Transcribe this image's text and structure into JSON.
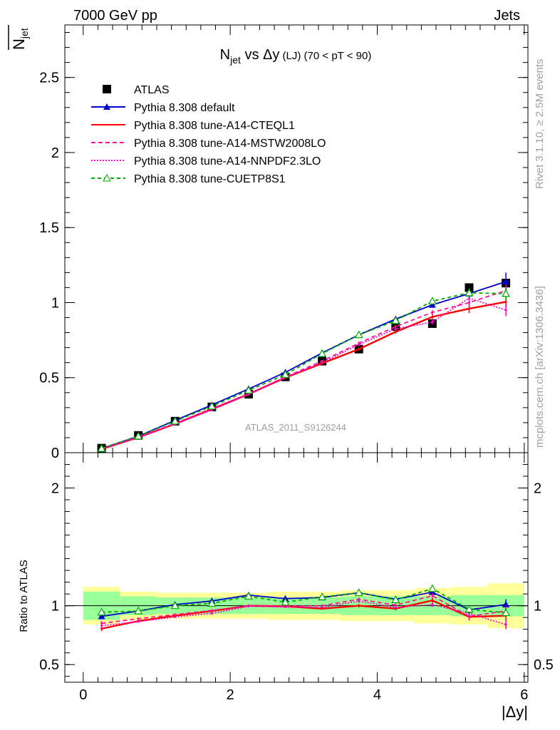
{
  "header": {
    "energy_label": "7000 GeV pp",
    "process_label": "Jets",
    "side_rivet": "Rivet 3.1.10, ≥ 2.5M events",
    "side_mcplots": "mcplots.cern.ch [arXiv:1306.3436]",
    "analysis_id": "ATLAS_2011_S9126244"
  },
  "chart_data": [
    {
      "type": "line",
      "panel": "main",
      "title": {
        "n": "N",
        "sub": "jet",
        "rest": " vs Δy",
        "small": " (LJ)",
        "tail": " (70 < pT <  90)"
      },
      "ylabel": {
        "n": "N",
        "sub": "jet"
      },
      "xlim": [
        -0.25,
        6.05
      ],
      "ylim": [
        0,
        2.85
      ],
      "yticks": [
        0,
        0.5,
        1,
        1.5,
        2,
        2.5
      ],
      "ytick_labels": [
        "0",
        "0.5",
        "1",
        "1.5",
        "2",
        "2.5"
      ],
      "legend_position": "top-left",
      "x": [
        0.25,
        0.75,
        1.25,
        1.75,
        2.25,
        2.75,
        3.25,
        3.75,
        4.25,
        4.75,
        5.25,
        5.75
      ],
      "data": {
        "name": "ATLAS",
        "values": [
          0.03,
          0.115,
          0.21,
          0.305,
          0.39,
          0.505,
          0.61,
          0.69,
          0.84,
          0.86,
          1.1,
          1.13
        ],
        "errors": [
          0.005,
          0.005,
          0.008,
          0.01,
          0.012,
          0.015,
          0.018,
          0.02,
          0.025,
          0.03,
          0.035,
          0.04
        ],
        "color": "#000000"
      },
      "series": [
        {
          "name": "Pythia 8.308 default",
          "color": "#0000cc",
          "dash": "",
          "marker": "triangle-filled",
          "values": [
            0.028,
            0.11,
            0.215,
            0.318,
            0.425,
            0.535,
            0.665,
            0.785,
            0.89,
            0.985,
            1.06,
            1.14
          ],
          "errors": [
            0.002,
            0.003,
            0.004,
            0.005,
            0.006,
            0.007,
            0.008,
            0.01,
            0.012,
            0.015,
            0.04,
            0.06
          ]
        },
        {
          "name": "Pythia 8.308 tune-A14-CTEQL1",
          "color": "#ff0000",
          "dash": "",
          "marker": "none",
          "values": [
            0.024,
            0.102,
            0.192,
            0.29,
            0.39,
            0.5,
            0.595,
            0.69,
            0.805,
            0.905,
            0.96,
            1.005
          ],
          "errors": [
            0.002,
            0.003,
            0.004,
            0.005,
            0.006,
            0.007,
            0.008,
            0.01,
            0.012,
            0.015,
            0.03,
            0.04
          ]
        },
        {
          "name": "Pythia 8.308 tune-A14-MSTW2008LO",
          "color": "#ff1493",
          "dash": "6,4",
          "marker": "none",
          "values": [
            0.026,
            0.105,
            0.195,
            0.295,
            0.392,
            0.505,
            0.61,
            0.73,
            0.84,
            0.935,
            1.0,
            1.08
          ],
          "errors": [
            0.002,
            0.003,
            0.004,
            0.005,
            0.006,
            0.007,
            0.008,
            0.01,
            0.012,
            0.015,
            0.03,
            0.04
          ]
        },
        {
          "name": "Pythia 8.308 tune-A14-NNPDF2.3LO",
          "color": "#ff00cc",
          "dash": "2,2",
          "marker": "none",
          "values": [
            0.025,
            0.1,
            0.19,
            0.285,
            0.388,
            0.5,
            0.6,
            0.72,
            0.825,
            0.87,
            1.03,
            0.95
          ],
          "errors": [
            0.002,
            0.003,
            0.004,
            0.005,
            0.006,
            0.007,
            0.008,
            0.01,
            0.012,
            0.015,
            0.03,
            0.04
          ]
        },
        {
          "name": "Pythia 8.308 tune-CUETP8S1",
          "color": "#00aa00",
          "dash": "5,4",
          "marker": "triangle-open",
          "values": [
            0.028,
            0.11,
            0.21,
            0.31,
            0.415,
            0.52,
            0.66,
            0.785,
            0.88,
            1.01,
            1.065,
            1.06
          ],
          "errors": [
            0.002,
            0.003,
            0.004,
            0.005,
            0.006,
            0.007,
            0.008,
            0.01,
            0.012,
            0.015,
            0.03,
            0.04
          ]
        }
      ]
    },
    {
      "type": "line",
      "panel": "ratio",
      "ylabel": "Ratio to ATLAS",
      "xlabel": "|Δy|",
      "xlim": [
        -0.25,
        6.05
      ],
      "ylim": [
        0.35,
        2.3
      ],
      "yticks": [
        0.5,
        1,
        2
      ],
      "ytick_labels": [
        "0.5",
        "1",
        "2"
      ],
      "xticks": [
        0,
        2,
        4,
        6
      ],
      "xtick_labels": [
        "0",
        "2",
        "4",
        "6"
      ],
      "bands": {
        "edges": [
          0,
          0.5,
          1,
          1.5,
          2,
          2.5,
          3,
          3.5,
          4,
          4.5,
          5,
          5.5,
          6
        ],
        "inner_low": [
          0.88,
          0.92,
          0.93,
          0.93,
          0.93,
          0.93,
          0.93,
          0.92,
          0.92,
          0.92,
          0.91,
          0.91
        ],
        "inner_high": [
          1.12,
          1.08,
          1.07,
          1.07,
          1.07,
          1.07,
          1.07,
          1.08,
          1.08,
          1.08,
          1.09,
          1.09
        ],
        "outer_low": [
          0.84,
          0.88,
          0.89,
          0.89,
          0.89,
          0.88,
          0.88,
          0.87,
          0.87,
          0.85,
          0.84,
          0.81
        ],
        "outer_high": [
          1.16,
          1.12,
          1.11,
          1.11,
          1.11,
          1.12,
          1.12,
          1.13,
          1.13,
          1.15,
          1.16,
          1.19
        ],
        "inner_color": "#99ff99",
        "outer_color": "#ffff99"
      },
      "series": [
        {
          "name": "Pythia 8.308 default",
          "color": "#0000cc",
          "dash": "",
          "marker": "triangle-filled",
          "values": [
            0.91,
            0.955,
            1.01,
            1.04,
            1.09,
            1.06,
            1.07,
            1.11,
            1.055,
            1.115,
            0.965,
            1.01
          ],
          "errors": [
            0.01,
            0.01,
            0.01,
            0.01,
            0.01,
            0.01,
            0.01,
            0.015,
            0.015,
            0.02,
            0.03,
            0.045
          ]
        },
        {
          "name": "Pythia 8.308 tune-A14-CTEQL1",
          "color": "#ff0000",
          "dash": "",
          "marker": "none",
          "values": [
            0.805,
            0.87,
            0.915,
            0.955,
            1.0,
            0.995,
            0.975,
            1.0,
            0.975,
            1.045,
            0.905,
            0.915
          ],
          "errors": [
            0.02,
            0.01,
            0.01,
            0.01,
            0.01,
            0.01,
            0.01,
            0.015,
            0.015,
            0.02,
            0.03,
            0.04
          ]
        },
        {
          "name": "Pythia 8.308 tune-A14-MSTW2008LO",
          "color": "#ff1493",
          "dash": "6,4",
          "marker": "none",
          "values": [
            0.85,
            0.89,
            0.925,
            0.96,
            1.0,
            1.0,
            1.0,
            1.055,
            1.005,
            1.085,
            0.91,
            0.955
          ],
          "errors": [
            0.02,
            0.01,
            0.01,
            0.01,
            0.01,
            0.01,
            0.01,
            0.015,
            0.015,
            0.02,
            0.03,
            0.04
          ]
        },
        {
          "name": "Pythia 8.308 tune-A14-NNPDF2.3LO",
          "color": "#ff00cc",
          "dash": "2,2",
          "marker": "none",
          "values": [
            0.83,
            0.865,
            0.905,
            0.935,
            0.995,
            0.99,
            0.985,
            1.04,
            0.985,
            1.01,
            0.935,
            0.84
          ],
          "errors": [
            0.02,
            0.01,
            0.01,
            0.01,
            0.01,
            0.01,
            0.01,
            0.015,
            0.015,
            0.02,
            0.03,
            0.04
          ]
        },
        {
          "name": "Pythia 8.308 tune-CUETP8S1",
          "color": "#00aa00",
          "dash": "5,4",
          "marker": "triangle-open",
          "values": [
            0.945,
            0.955,
            1.0,
            1.02,
            1.08,
            1.03,
            1.075,
            1.11,
            1.05,
            1.145,
            0.97,
            0.94
          ],
          "errors": [
            0.01,
            0.01,
            0.01,
            0.01,
            0.01,
            0.01,
            0.01,
            0.015,
            0.015,
            0.02,
            0.03,
            0.04
          ]
        }
      ]
    }
  ]
}
